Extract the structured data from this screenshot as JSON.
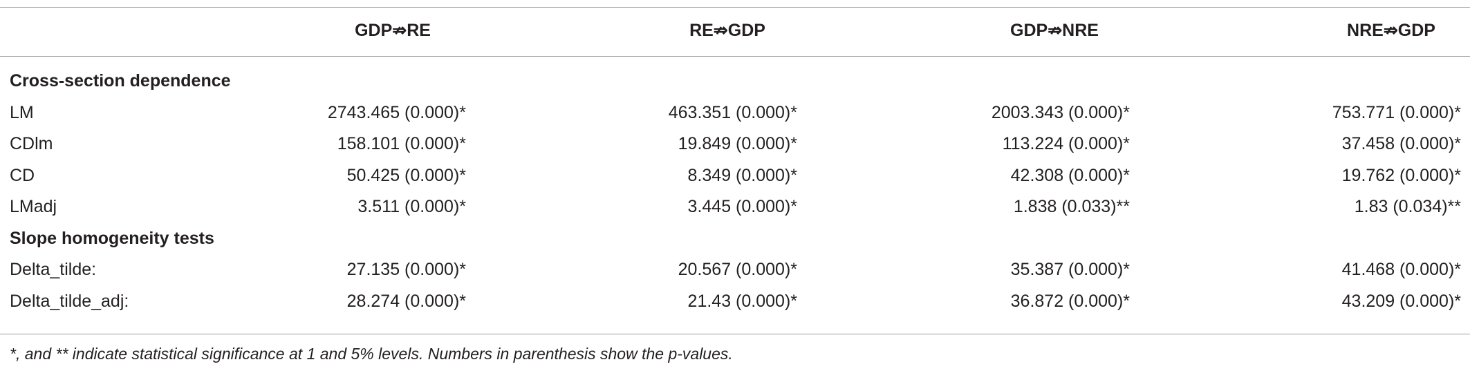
{
  "table": {
    "columns": [
      "GDP⇏RE",
      "RE⇏GDP",
      "GDP⇏NRE",
      "NRE⇏GDP"
    ],
    "sections": [
      {
        "title": "Cross-section dependence",
        "rows": [
          {
            "label": "LM",
            "cells": [
              "2743.465 (0.000)*",
              "463.351 (0.000)*",
              "2003.343 (0.000)*",
              "753.771 (0.000)*"
            ]
          },
          {
            "label": "CDlm",
            "cells": [
              "158.101 (0.000)*",
              "19.849 (0.000)*",
              "113.224 (0.000)*",
              "37.458 (0.000)*"
            ]
          },
          {
            "label": "CD",
            "cells": [
              "50.425 (0.000)*",
              "8.349 (0.000)*",
              "42.308 (0.000)*",
              "19.762 (0.000)*"
            ]
          },
          {
            "label": "LMadj",
            "cells": [
              "3.511 (0.000)*",
              "3.445 (0.000)*",
              "1.838 (0.033)**",
              "1.83 (0.034)**"
            ]
          }
        ]
      },
      {
        "title": "Slope homogeneity tests",
        "rows": [
          {
            "label": "Delta_tilde:",
            "cells": [
              "27.135 (0.000)*",
              "20.567 (0.000)*",
              "35.387 (0.000)*",
              "41.468 (0.000)*"
            ]
          },
          {
            "label": "Delta_tilde_adj:",
            "cells": [
              "28.274 (0.000)*",
              "21.43 (0.000)*",
              "36.872 (0.000)*",
              "43.209 (0.000)*"
            ]
          }
        ]
      }
    ],
    "footnote": "*, and ** indicate statistical significance at 1 and 5% levels. Numbers in parenthesis show the p-values."
  }
}
